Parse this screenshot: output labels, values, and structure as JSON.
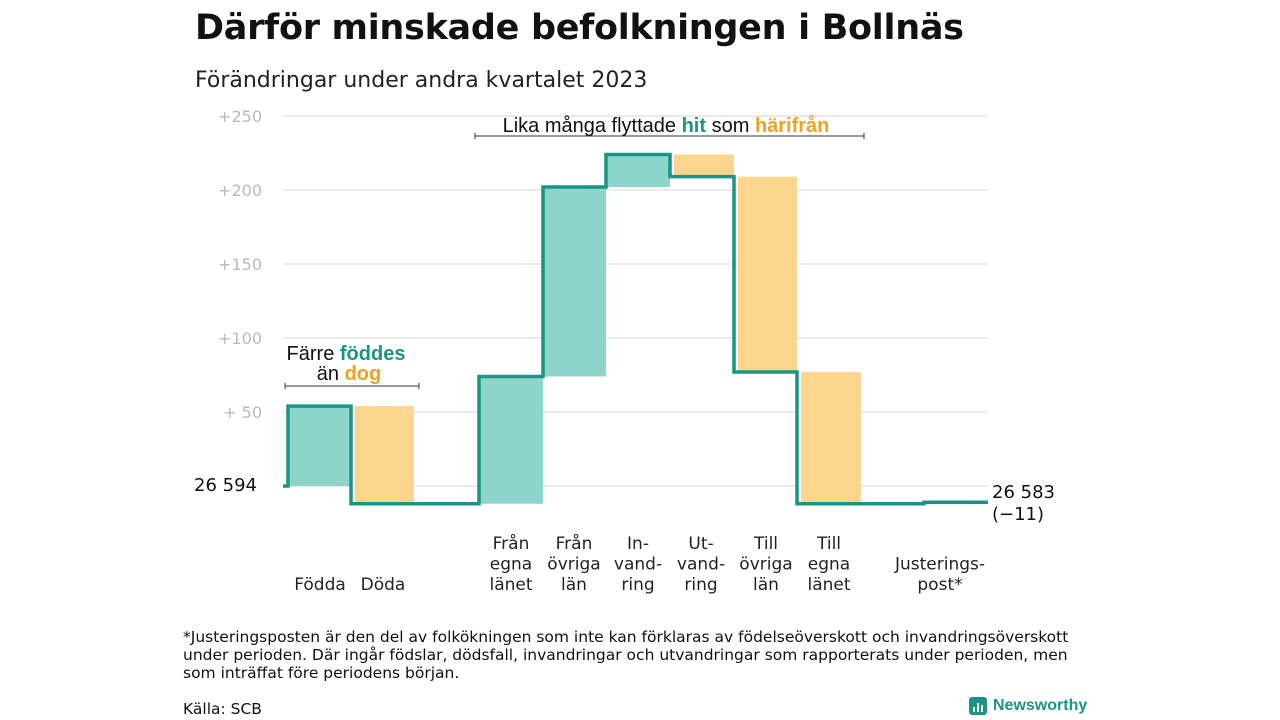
{
  "title": "Därför minskade befolkningen i Bollnäs",
  "subtitle": "Förändringar under andra kvartalet 2023",
  "chart_data": {
    "type": "waterfall",
    "title": "Därför minskade befolkningen i Bollnäs",
    "subtitle": "Förändringar under andra kvartalet 2023",
    "baseline_label": "26  594",
    "end_label": [
      "26 583",
      "(−11)"
    ],
    "ylim": [
      -12,
      250
    ],
    "yticks": [
      {
        "value": 250,
        "label": "+250"
      },
      {
        "value": 200,
        "label": "+200"
      },
      {
        "value": 150,
        "label": "+150"
      },
      {
        "value": 100,
        "label": "+100"
      },
      {
        "value": 50,
        "label": "+  50"
      },
      {
        "value": 0,
        "label": ""
      }
    ],
    "steps": [
      {
        "label": [
          "Födda"
        ],
        "start": 0,
        "end": 54,
        "kind": "in"
      },
      {
        "label": [
          "Döda"
        ],
        "start": 54,
        "end": -12,
        "kind": "out"
      },
      {
        "label": [
          "Från",
          "egna",
          "länet"
        ],
        "start": -12,
        "end": 74,
        "kind": "in"
      },
      {
        "label": [
          "Från",
          "övriga",
          "län"
        ],
        "start": 74,
        "end": 202,
        "kind": "in"
      },
      {
        "label": [
          "In-",
          "vand-",
          "ring"
        ],
        "start": 202,
        "end": 224,
        "kind": "in"
      },
      {
        "label": [
          "Ut-",
          "vand-",
          "ring"
        ],
        "start": 224,
        "end": 209,
        "kind": "out"
      },
      {
        "label": [
          "Till",
          "övriga",
          "län"
        ],
        "start": 209,
        "end": 77,
        "kind": "out"
      },
      {
        "label": [
          "Till",
          "egna",
          "länet"
        ],
        "start": 77,
        "end": -12,
        "kind": "out"
      },
      {
        "label": [
          "Justerings-",
          "post*"
        ],
        "start": -12,
        "end": -11,
        "kind": "adjust"
      }
    ],
    "annotations": [
      {
        "id": "births",
        "parts": [
          [
            "Färre ",
            "plain"
          ],
          [
            "föddes",
            "teal"
          ]
        ],
        "parts2": [
          [
            "än ",
            "plain"
          ],
          [
            "dog",
            "orange"
          ]
        ]
      },
      {
        "id": "moves",
        "parts": [
          [
            "Lika många flyttade ",
            "plain"
          ],
          [
            "hit",
            "teal"
          ],
          [
            " som ",
            "plain"
          ],
          [
            "härifrån",
            "orange"
          ]
        ]
      }
    ],
    "colors": {
      "in": "#8dd5cb",
      "out": "#fdd68e",
      "line": "#1a9486",
      "grid": "#e3e3e3",
      "tick": "#b9b9b9"
    }
  },
  "footnote": "*Justeringsposten är den del av folkökningen som inte kan förklaras av födelseöverskott och invandringsöverskott under perioden. Där ingår födslar, dödsfall, invandringar och utvandringar som rapporterats under perioden, men som inträffat före periodens början.",
  "source": "Källa: SCB",
  "brand": "Newsworthy"
}
